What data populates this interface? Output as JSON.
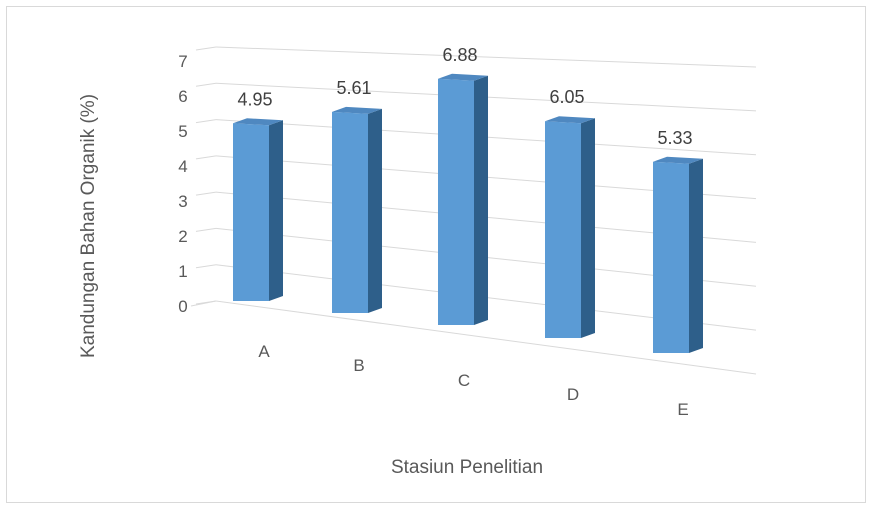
{
  "chart_data": {
    "type": "bar",
    "style": "3d-column",
    "categories": [
      "A",
      "B",
      "C",
      "D",
      "E"
    ],
    "values": [
      4.95,
      5.61,
      6.88,
      6.05,
      5.33
    ],
    "data_labels": [
      "4.95",
      "5.61",
      "6.88",
      "6.05",
      "5.33"
    ],
    "yticks": [
      "0",
      "1",
      "2",
      "3",
      "4",
      "5",
      "6",
      "7"
    ],
    "xlabel": "Stasiun Penelitian",
    "ylabel": "Kandungan Bahan Organik (%)",
    "ylim": [
      0,
      7
    ],
    "grid": true,
    "legend": "none",
    "colors": {
      "bar_front": "#5b9bd5",
      "bar_side": "#2e5f8a",
      "bar_top": "#4f88c0",
      "grid": "#d9d9d9",
      "text": "#595959"
    }
  }
}
